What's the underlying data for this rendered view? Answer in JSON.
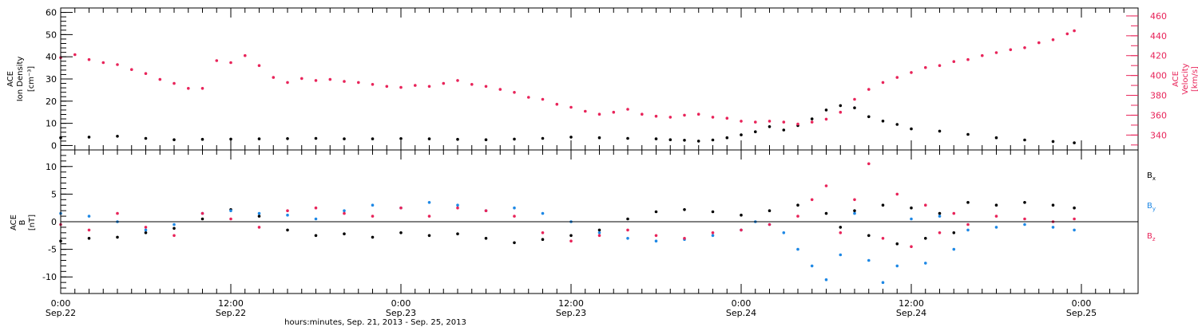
{
  "chart_data": [
    {
      "type": "scatter",
      "panel": "top",
      "ylabel_lines": [
        "ACE",
        "Ion Density",
        "[cm⁻³]"
      ],
      "ylim": [
        -2,
        62
      ],
      "yticks": [
        0,
        10,
        20,
        30,
        40,
        50,
        60
      ],
      "ytick_labels": [
        "0",
        "10",
        "20",
        "30",
        "40",
        "50",
        "60"
      ],
      "ylabel2_lines": [
        "ACE",
        "Velocity",
        "[km/s]"
      ],
      "ylim2": [
        325,
        468
      ],
      "yticks2": [
        340,
        360,
        380,
        400,
        420,
        440,
        460
      ],
      "ytick_labels2": [
        "340",
        "360",
        "380",
        "400",
        "420",
        "440",
        "460"
      ],
      "series": [
        {
          "color": "#000000",
          "axis": "left",
          "x": [
            0,
            2,
            4,
            6,
            8,
            10,
            12,
            14,
            16,
            18,
            20,
            22,
            24,
            26,
            28,
            30,
            32,
            34,
            36,
            38,
            40,
            42,
            43,
            44,
            45,
            46,
            47,
            48,
            49,
            50,
            51,
            52,
            53,
            54,
            55,
            56,
            57,
            58,
            59,
            60,
            62,
            64,
            66,
            68,
            70,
            71.5
          ],
          "values": [
            3.5,
            3.8,
            4.2,
            3.2,
            2.6,
            2.8,
            2.9,
            3.0,
            3.1,
            3.2,
            3.0,
            3.0,
            3.1,
            3.0,
            2.8,
            2.6,
            2.9,
            3.2,
            3.8,
            3.5,
            3.2,
            3.0,
            2.6,
            2.4,
            2.0,
            2.5,
            3.5,
            4.8,
            6.2,
            8.5,
            7.0,
            9.0,
            12.0,
            16.0,
            18.0,
            17.0,
            13.0,
            11.0,
            9.5,
            7.5,
            6.5,
            5.0,
            3.5,
            2.5,
            1.8,
            1.2
          ]
        },
        {
          "color": "#e8245a",
          "axis": "right",
          "x": [
            0,
            1,
            2,
            3,
            4,
            5,
            6,
            7,
            8,
            9,
            10,
            11,
            12,
            13,
            14,
            15,
            16,
            17,
            18,
            19,
            20,
            21,
            22,
            23,
            24,
            25,
            26,
            27,
            28,
            29,
            30,
            31,
            32,
            33,
            34,
            35,
            36,
            37,
            38,
            39,
            40,
            41,
            42,
            43,
            44,
            45,
            46,
            47,
            48,
            49,
            50,
            51,
            52,
            53,
            54,
            55,
            56,
            57,
            58,
            59,
            60,
            61,
            62,
            63,
            64,
            65,
            66,
            67,
            68,
            69,
            70,
            71,
            71.5
          ],
          "values": [
            418,
            421,
            416,
            413,
            411,
            406,
            402,
            396,
            392,
            387,
            387,
            415,
            413,
            420,
            410,
            398,
            393,
            397,
            395,
            396,
            394,
            393,
            391,
            389,
            388,
            390,
            389,
            392,
            395,
            391,
            389,
            386,
            383,
            378,
            376,
            371,
            368,
            364,
            361,
            363,
            366,
            361,
            359,
            358,
            360,
            361,
            358,
            357,
            354,
            353,
            354,
            353,
            351,
            353,
            356,
            363,
            376,
            386,
            393,
            398,
            403,
            408,
            410,
            414,
            416,
            420,
            423,
            426,
            428,
            433,
            436,
            442,
            445
          ]
        }
      ]
    },
    {
      "type": "scatter",
      "panel": "bottom",
      "ylabel_lines": [
        "ACE",
        "B",
        "[nT]"
      ],
      "ylim": [
        -13,
        13
      ],
      "yticks": [
        -10,
        -5,
        0,
        5,
        10
      ],
      "ytick_labels": [
        "-10",
        "-5",
        "0",
        "5",
        "10"
      ],
      "zero_line": true,
      "legend_placement": "right",
      "series": [
        {
          "name": "Bx",
          "name_main": "B",
          "name_sub": "x",
          "color": "#000000",
          "x": [
            0,
            2,
            4,
            6,
            8,
            10,
            12,
            14,
            16,
            18,
            20,
            22,
            24,
            26,
            28,
            30,
            32,
            34,
            36,
            38,
            40,
            42,
            44,
            46,
            48,
            50,
            52,
            54,
            55,
            56,
            57,
            58,
            59,
            60,
            61,
            62,
            63,
            64,
            66,
            68,
            70,
            71.5
          ],
          "values": [
            -3.5,
            -3.0,
            -2.8,
            -2.0,
            -1.2,
            0.5,
            2.2,
            1.0,
            -1.5,
            -2.5,
            -2.2,
            -2.8,
            -2.0,
            -2.5,
            -2.2,
            -3.0,
            -3.8,
            -3.2,
            -2.5,
            -1.5,
            0.5,
            1.8,
            2.2,
            1.8,
            1.2,
            2.0,
            3.0,
            1.5,
            -1.0,
            2.0,
            -2.5,
            3.0,
            -4.0,
            2.5,
            -3.0,
            1.5,
            -2.0,
            3.5,
            3.0,
            3.5,
            3.0,
            2.5
          ]
        },
        {
          "name": "By",
          "name_main": "B",
          "name_sub": "y",
          "color": "#1e88e5",
          "x": [
            0,
            2,
            4,
            6,
            8,
            10,
            12,
            14,
            16,
            18,
            20,
            22,
            24,
            26,
            28,
            30,
            32,
            34,
            36,
            38,
            40,
            42,
            44,
            46,
            48,
            49,
            50,
            51,
            52,
            53,
            54,
            55,
            56,
            57,
            58,
            59,
            60,
            61,
            62,
            63,
            64,
            66,
            68,
            70,
            71.5
          ],
          "values": [
            1.5,
            1.0,
            0.0,
            -1.5,
            -0.5,
            1.5,
            2.0,
            1.5,
            1.2,
            0.5,
            2.0,
            3.0,
            2.5,
            3.5,
            3.0,
            2.0,
            2.5,
            1.5,
            0.0,
            -2.0,
            -3.0,
            -3.5,
            -3.2,
            -2.5,
            -1.5,
            0.0,
            -0.5,
            -2.0,
            -5.0,
            -8.0,
            -10.5,
            -6.0,
            1.5,
            -7.0,
            -11.0,
            -8.0,
            0.5,
            -7.5,
            1.0,
            -5.0,
            -1.5,
            -1.0,
            -0.5,
            -1.0,
            -1.5
          ]
        },
        {
          "name": "Bz",
          "name_main": "B",
          "name_sub": "z",
          "color": "#e8245a",
          "x": [
            0,
            2,
            4,
            6,
            8,
            10,
            12,
            14,
            16,
            18,
            20,
            22,
            24,
            26,
            28,
            30,
            32,
            34,
            36,
            38,
            40,
            42,
            44,
            46,
            48,
            50,
            52,
            53,
            54,
            55,
            56,
            57,
            58,
            59,
            60,
            61,
            62,
            63,
            64,
            66,
            68,
            70,
            71.5
          ],
          "values": [
            -0.5,
            -1.5,
            1.5,
            -1.0,
            -2.5,
            1.5,
            0.5,
            -1.0,
            2.0,
            2.5,
            1.5,
            1.0,
            2.5,
            1.0,
            2.5,
            2.0,
            1.0,
            -2.0,
            -3.5,
            -2.5,
            -1.5,
            -2.5,
            -3.0,
            -2.0,
            -1.5,
            -0.5,
            1.0,
            4.0,
            6.5,
            -2.0,
            4.0,
            10.5,
            -3.0,
            5.0,
            -4.5,
            3.0,
            -2.0,
            1.5,
            -0.5,
            1.0,
            0.5,
            0.0,
            0.5
          ]
        }
      ]
    }
  ],
  "x_axis": {
    "xlim": [
      0,
      76
    ],
    "ticks": [
      0,
      12,
      24,
      36,
      48,
      60,
      72
    ],
    "tick_labels_top": [
      "0:00",
      "12:00",
      "0:00",
      "12:00",
      "0:00",
      "12:00",
      "0:00"
    ],
    "tick_labels_bottom": [
      "Sep.22",
      "Sep.22",
      "Sep.23",
      "Sep.23",
      "Sep.24",
      "Sep.24",
      "Sep.25"
    ],
    "xlabel": "hours:minutes, Sep. 21, 2013 - Sep. 25, 2013"
  }
}
